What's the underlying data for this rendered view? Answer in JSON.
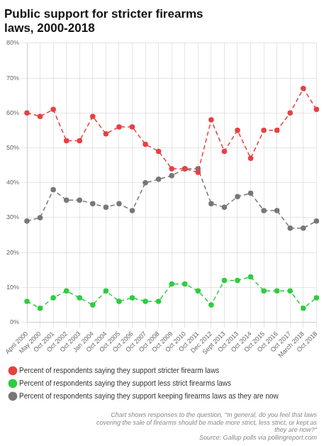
{
  "chart_data": {
    "type": "line",
    "title": "Public support for stricter firearms\nlaws, 2000-2018",
    "footnote": "Chart shows responses to the question, \"In general, do you feel that laws\ncovering the sale of firearms should be made more strict, less strict, or kept as\nthey are now?\"\nSource: Gallup polls via pollingreport.com",
    "categories": [
      "April 2000",
      "May 2000",
      "Oct 2001",
      "Oct 2002",
      "Oct 2003",
      "Jan 2004",
      "Oct 2004",
      "Oct 2005",
      "Oct 2006",
      "Oct 2007",
      "Oct 2008",
      "Oct 2009",
      "Oct 2010",
      "Oct 2011",
      "Dec 2012",
      "Sept 2013",
      "Oct 2013",
      "Oct 2014",
      "Oct 2015",
      "Oct 2016",
      "Oct 2017",
      "March 2018",
      "Oct 2018"
    ],
    "series": [
      {
        "name": "Percent of respondents saying they support stricter firearm laws",
        "color": "#e84040",
        "values": [
          60,
          59,
          61,
          52,
          52,
          59,
          54,
          56,
          56,
          51,
          49,
          44,
          44,
          43,
          58,
          49,
          55,
          47,
          55,
          55,
          60,
          67,
          61
        ]
      },
      {
        "name": "Percent of respondents saying they support less strict firearms laws",
        "color": "#2ecc40",
        "values": [
          6,
          4,
          7,
          9,
          7,
          5,
          9,
          6,
          7,
          6,
          6,
          11,
          11,
          9,
          5,
          12,
          12,
          13,
          9,
          9,
          9,
          4,
          7
        ]
      },
      {
        "name": "Percent of respondents saying they support keeping firearms laws as they are now",
        "color": "#777777",
        "values": [
          29,
          30,
          38,
          35,
          35,
          34,
          33,
          34,
          32,
          40,
          41,
          42,
          44,
          44,
          34,
          33,
          36,
          37,
          32,
          32,
          27,
          27,
          29
        ]
      }
    ],
    "ylim": [
      0,
      80
    ],
    "yticks": [
      {
        "value": 0,
        "label": "0%"
      },
      {
        "value": 10,
        "label": "10%"
      },
      {
        "value": 20,
        "label": "20%"
      },
      {
        "value": 30,
        "label": "30%"
      },
      {
        "value": 40,
        "label": "40%"
      },
      {
        "value": 50,
        "label": "50%"
      },
      {
        "value": 60,
        "label": "60%"
      },
      {
        "value": 70,
        "label": "70%"
      },
      {
        "value": 80,
        "label": "80%"
      }
    ],
    "grid": true,
    "legend": "bottom",
    "marker": "circle",
    "line_style": "dashed"
  }
}
